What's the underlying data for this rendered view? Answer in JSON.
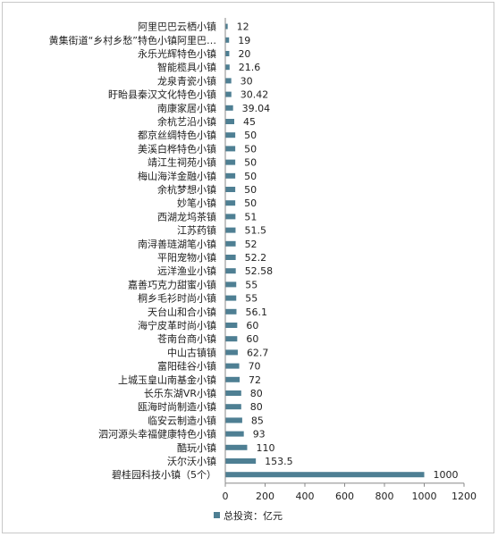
{
  "chart_data": {
    "type": "bar",
    "orientation": "horizontal",
    "title": "",
    "xlabel": "",
    "ylabel": "",
    "xlim": [
      0,
      1200
    ],
    "xticks": [
      0,
      200,
      400,
      600,
      800,
      1000,
      1200
    ],
    "grid": false,
    "legend": "bottom",
    "bar_color": "#4e7f93",
    "categories": [
      "阿里巴巴云栖小镇",
      "黄集街道“乡村乡愁”特色小镇阿里巴…",
      "永乐光辉特色小镇",
      "智能榄具小镇",
      "龙泉青瓷小镇",
      "盱眙县秦汉文化特色小镇",
      "南康家居小镇",
      "余杭艺沿小镇",
      "都京丝绸特色小镇",
      "美溪白桦特色小镇",
      "靖江生祠苑小镇",
      "梅山海洋金融小镇",
      "余杭梦想小镇",
      "妙笔小镇",
      "西湖龙坞茶镇",
      "江苏药镇",
      "南浔善琏湖笔小镇",
      "平阳宠物小镇",
      "远洋渔业小镇",
      "嘉善巧克力甜蜜小镇",
      "桐乡毛衫时尚小镇",
      "天台山和合小镇",
      "海宁皮革时尚小镇",
      "苍南台商小镇",
      "中山古镇镇",
      "富阳硅谷小镇",
      "上城玉皇山南基金小镇",
      "长乐东湖VR小镇",
      "瓯海时尚制造小镇",
      "临安云制造小镇",
      "泗河源头幸福健康特色小镇",
      "酷玩小镇",
      "沃尔沃小镇",
      "碧桂园科技小镇（5个）"
    ],
    "value_labels": [
      "12",
      "19",
      "20",
      "21.6",
      "30",
      "30.42",
      "39.04",
      "45",
      "50",
      "50",
      "50",
      "50",
      "50",
      "50",
      "51",
      "51.5",
      "52",
      "52.2",
      "52.58",
      "55",
      "55",
      "56.1",
      "60",
      "60",
      "62.7",
      "70",
      "72",
      "80",
      "80",
      "85",
      "93",
      "110",
      "153.5",
      "1000"
    ],
    "series": [
      {
        "name": "总投资：亿元",
        "values": [
          12,
          19,
          20,
          21.6,
          30,
          30.42,
          39.04,
          45,
          50,
          50,
          50,
          50,
          50,
          50,
          51,
          51.5,
          52,
          52.2,
          52.58,
          55,
          55,
          56.1,
          60,
          60,
          62.7,
          70,
          72,
          80,
          80,
          85,
          93,
          110,
          153.5,
          1000
        ]
      }
    ]
  }
}
